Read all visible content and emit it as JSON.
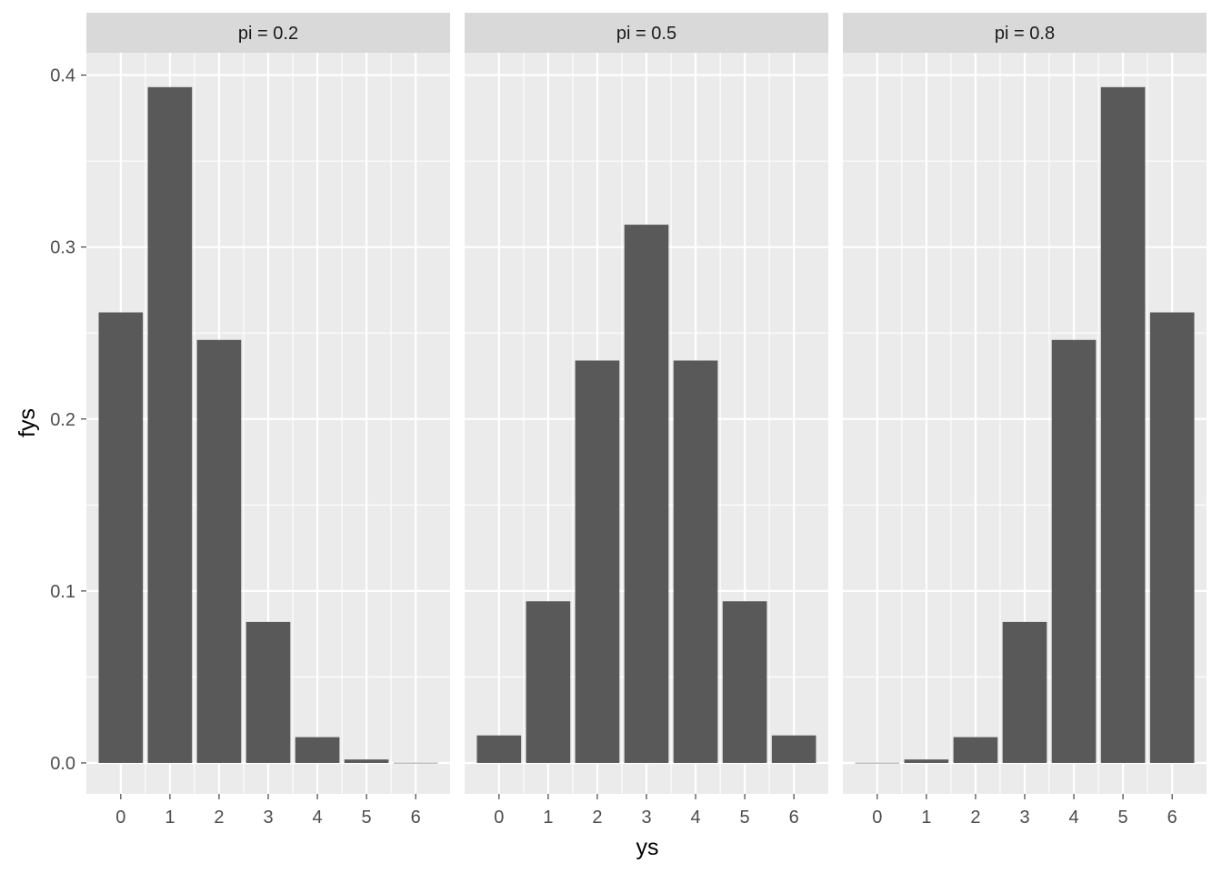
{
  "chart_data": {
    "type": "bar",
    "xlabel": "ys",
    "ylabel": "fys",
    "x_ticks": [
      "0",
      "1",
      "2",
      "3",
      "4",
      "5",
      "6"
    ],
    "y_ticks": [
      "0.0",
      "0.1",
      "0.2",
      "0.3",
      "0.4"
    ],
    "ylim": [
      -0.018,
      0.413
    ],
    "xlim": [
      -0.7,
      6.7
    ],
    "grid": true,
    "facet_by": "pi",
    "panels": [
      {
        "label": "pi = 0.2",
        "categories": [
          0,
          1,
          2,
          3,
          4,
          5,
          6
        ],
        "values": [
          0.262,
          0.393,
          0.246,
          0.082,
          0.015,
          0.002,
          0.0001
        ]
      },
      {
        "label": "pi = 0.5",
        "categories": [
          0,
          1,
          2,
          3,
          4,
          5,
          6
        ],
        "values": [
          0.016,
          0.094,
          0.234,
          0.313,
          0.234,
          0.094,
          0.016
        ]
      },
      {
        "label": "pi = 0.8",
        "categories": [
          0,
          1,
          2,
          3,
          4,
          5,
          6
        ],
        "values": [
          0.0001,
          0.002,
          0.015,
          0.082,
          0.246,
          0.393,
          0.262
        ]
      }
    ]
  },
  "colors": {
    "panel_bg": "#ebebeb",
    "strip_bg": "#d9d9d9",
    "grid_major": "#ffffff",
    "bar_fill": "#595959"
  }
}
